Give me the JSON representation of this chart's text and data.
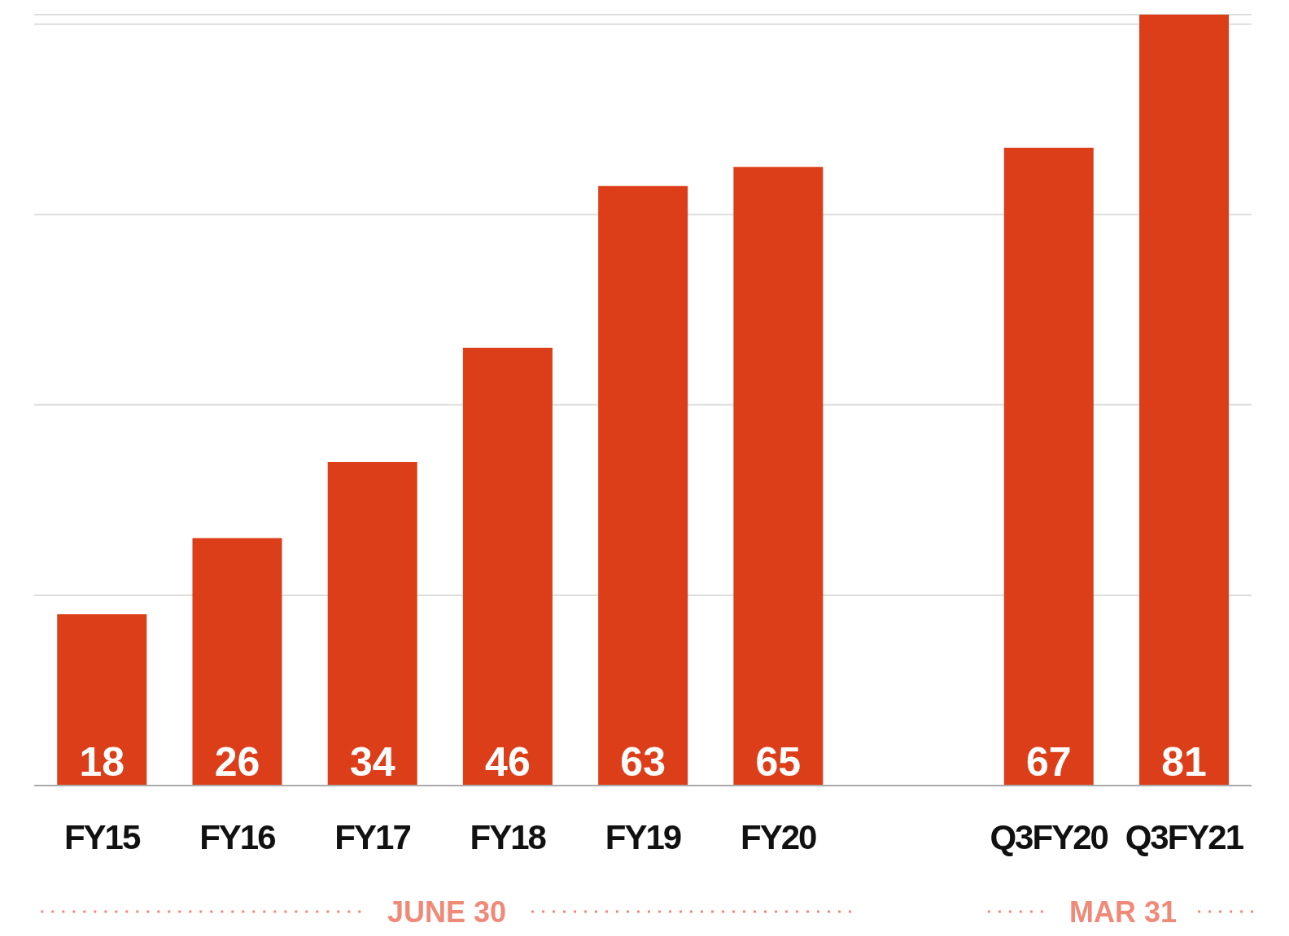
{
  "chart_data": {
    "type": "bar",
    "categories": [
      "FY15",
      "FY16",
      "FY17",
      "FY18",
      "FY19",
      "FY20",
      null,
      "Q3FY20",
      "Q3FY21"
    ],
    "values": [
      18,
      26,
      34,
      46,
      63,
      65,
      null,
      67,
      81
    ],
    "color": "#dd3e1a",
    "ylim": [
      0,
      81
    ],
    "yticks": [
      {
        "value": 20,
        "label": null
      },
      {
        "value": 40,
        "label": null
      },
      {
        "value": 60,
        "label": null
      },
      {
        "value": 80,
        "label": null
      }
    ],
    "tick_labels": "x",
    "grid": "y",
    "data_labels": true,
    "annotations": [
      "JUNE 30",
      "MAR 31"
    ]
  }
}
